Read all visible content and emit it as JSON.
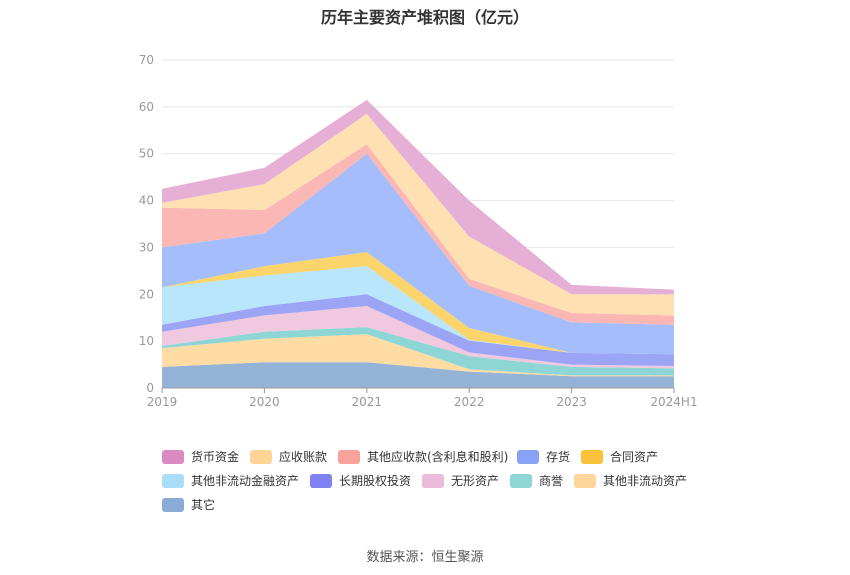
{
  "chart_data": {
    "type": "area",
    "stacked": true,
    "title": "历年主要资产堆积图（亿元）",
    "categories": [
      "2019",
      "2020",
      "2021",
      "2022",
      "2023",
      "2024H1"
    ],
    "ylim": [
      0,
      70
    ],
    "yticks": [
      0,
      10,
      20,
      30,
      40,
      50,
      60,
      70
    ],
    "grid": true,
    "legend_position": "bottom",
    "series": [
      {
        "name": "其它",
        "color": "#95b3d7",
        "values": [
          4.5,
          5.5,
          5.5,
          3.5,
          2.5,
          2.5
        ]
      },
      {
        "name": "其他非流动资产",
        "color": "#ffdca3",
        "values": [
          4.0,
          5.0,
          6.0,
          0.5,
          0.2,
          0.2
        ]
      },
      {
        "name": "商誉",
        "color": "#8ed6d6",
        "values": [
          0.5,
          1.5,
          1.5,
          2.8,
          1.8,
          1.5
        ]
      },
      {
        "name": "无形资产",
        "color": "#f0c8e0",
        "values": [
          3.0,
          3.5,
          4.5,
          0.8,
          0.5,
          0.5
        ]
      },
      {
        "name": "长期股权投资",
        "color": "#9ca4f5",
        "values": [
          1.5,
          2.0,
          2.5,
          2.5,
          2.5,
          2.5
        ]
      },
      {
        "name": "其他非流动金融资产",
        "color": "#b9e6fb",
        "values": [
          8.0,
          6.5,
          6.0,
          0.2,
          0.0,
          0.0
        ]
      },
      {
        "name": "合同资产",
        "color": "#fbd46c",
        "values": [
          0.0,
          2.0,
          3.0,
          2.5,
          0.0,
          0.0
        ]
      },
      {
        "name": "存货",
        "color": "#a5bdfa",
        "values": [
          8.5,
          7.0,
          21.0,
          9.0,
          6.5,
          6.3
        ]
      },
      {
        "name": "其他应收款(含利息和股利)",
        "color": "#fbb7b3",
        "values": [
          8.5,
          5.0,
          2.0,
          1.5,
          2.0,
          2.0
        ]
      },
      {
        "name": "应收账款",
        "color": "#ffe0b2",
        "values": [
          1.0,
          5.5,
          6.5,
          9.0,
          4.0,
          4.5
        ]
      },
      {
        "name": "货币资金",
        "color": "#e6b0d6",
        "values": [
          3.0,
          3.5,
          3.0,
          7.7,
          2.0,
          1.0
        ]
      }
    ],
    "legend_order": [
      "货币资金",
      "应收账款",
      "其他应收款(含利息和股利)",
      "存货",
      "合同资产",
      "其他非流动金融资产",
      "长期股权投资",
      "无形资产",
      "商誉",
      "其他非流动资产",
      "其它"
    ],
    "legend_colors": {
      "货币资金": "#d98bc2",
      "应收账款": "#ffd596",
      "其他应收款(含利息和股利)": "#f9a19b",
      "存货": "#88a3f5",
      "合同资产": "#f8c33a",
      "其他非流动金融资产": "#a8def8",
      "长期股权投资": "#7f82f0",
      "无形资产": "#ecbada",
      "商誉": "#8ed6d6",
      "其他非流动资产": "#ffd59e",
      "其它": "#8aabd6"
    }
  },
  "footer": {
    "source": "数据来源：恒生聚源"
  }
}
